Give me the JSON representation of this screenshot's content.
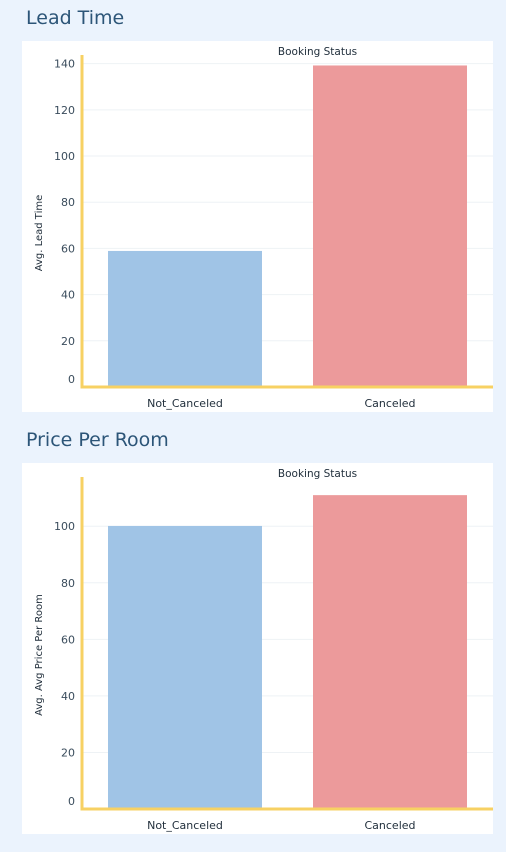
{
  "colors": {
    "background": "#ebf3fd",
    "not_canceled": "#a0c4e6",
    "canceled": "#ec9a9b",
    "axis": "#f7d163",
    "grid": "#eef2f5",
    "title": "#2c5578"
  },
  "sections": [
    {
      "title": "Lead Time"
    },
    {
      "title": "Price Per Room"
    }
  ],
  "chart_data": [
    {
      "type": "bar",
      "title": "Booking Status",
      "categories": [
        "Not_Canceled",
        "Canceled"
      ],
      "values": [
        58.9,
        139.2
      ],
      "xlabel": "",
      "ylabel": "Avg. Lead Time",
      "ylim": [
        0,
        142
      ],
      "yticks": [
        0,
        20,
        40,
        60,
        80,
        100,
        120,
        140
      ],
      "grid": true,
      "legend": "none"
    },
    {
      "type": "bar",
      "title": "Booking Status",
      "categories": [
        "Not_Canceled",
        "Canceled"
      ],
      "values": [
        100.1,
        111.0
      ],
      "xlabel": "",
      "ylabel": "Avg. Avg Price Per Room",
      "ylim": [
        0,
        116
      ],
      "yticks": [
        0,
        20,
        40,
        60,
        80,
        100
      ],
      "grid": true,
      "legend": "none"
    }
  ]
}
